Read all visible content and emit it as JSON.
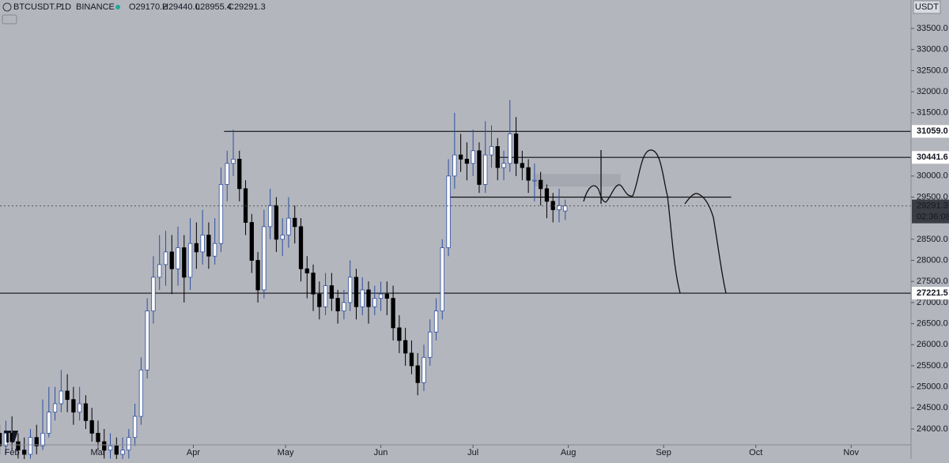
{
  "chart_data": {
    "type": "candlestick",
    "symbol": "BTCUSDT.P",
    "interval": "1D",
    "exchange": "BINANCE",
    "ohlc_labels": [
      "O29170.2",
      "H29440.0",
      "L28955.4",
      "C29291.3"
    ],
    "currency": "USDT",
    "x": [
      -4,
      -2,
      0,
      2,
      4,
      6,
      8,
      10,
      12,
      14,
      16,
      18,
      20,
      22,
      24,
      26,
      28,
      30,
      32,
      34,
      36,
      38,
      40,
      42,
      44,
      46,
      48,
      50,
      52,
      54,
      56,
      58,
      60,
      62,
      64,
      66,
      68,
      70,
      72,
      74,
      76,
      78,
      80,
      82,
      84,
      86,
      88,
      90,
      92,
      94,
      96,
      98,
      100,
      102,
      104,
      106,
      108,
      110,
      112,
      114,
      116,
      118,
      120,
      122,
      124,
      126,
      128,
      130,
      132,
      134,
      136,
      138,
      140,
      142,
      144,
      146,
      148,
      150,
      152,
      154,
      156,
      158,
      160,
      162,
      164,
      166,
      168,
      170,
      172,
      174,
      176,
      178,
      180
    ],
    "open": [
      23900,
      23600,
      23900,
      23700,
      23500,
      23400,
      23800,
      23600,
      23900,
      24400,
      24600,
      24900,
      24700,
      24400,
      24600,
      24200,
      23900,
      23700,
      23500,
      23600,
      23400,
      23500,
      23800,
      24300,
      25400,
      26800,
      27600,
      27900,
      28200,
      27800,
      28300,
      27600,
      28400,
      28200,
      28600,
      28100,
      28400,
      29800,
      30300,
      30400,
      29700,
      28900,
      28000,
      27300,
      28800,
      29300,
      28500,
      28600,
      29000,
      28800,
      27800,
      27700,
      27200,
      26900,
      27400,
      27100,
      26800,
      27000,
      27600,
      26900,
      27300,
      26900,
      27100,
      27200,
      27100,
      26400,
      26100,
      25800,
      25500,
      25100,
      25700,
      26300,
      26800,
      28300,
      30000,
      30500,
      30400,
      30300,
      30600,
      29800,
      30500,
      30700,
      30200,
      30300,
      31000,
      30300,
      30200,
      29900,
      29900,
      29700,
      29400,
      29200,
      29170.2
    ],
    "high": [
      24100,
      24200,
      24300,
      23900,
      23800,
      24000,
      24100,
      24700,
      25000,
      25000,
      25400,
      25300,
      25000,
      25000,
      24800,
      24500,
      24200,
      24000,
      23900,
      23800,
      23800,
      24000,
      24600,
      25700,
      27100,
      28100,
      28600,
      28700,
      28600,
      28800,
      28600,
      29000,
      28900,
      29200,
      28900,
      29000,
      30200,
      30600,
      31100,
      30600,
      29900,
      29100,
      28200,
      29200,
      29700,
      29500,
      29000,
      29500,
      29300,
      29000,
      28100,
      27900,
      27500,
      27700,
      27700,
      27300,
      27300,
      28000,
      27800,
      27600,
      27500,
      27400,
      27500,
      27500,
      27400,
      26700,
      26400,
      26100,
      25800,
      26000,
      26600,
      27100,
      28500,
      30400,
      31500,
      31000,
      30800,
      31100,
      30800,
      31300,
      31200,
      30900,
      30600,
      31800,
      31400,
      30600,
      30400,
      30300,
      30100,
      29800,
      29600,
      29700,
      29440
    ],
    "low": [
      23400,
      23400,
      23500,
      23300,
      23200,
      23300,
      23400,
      23500,
      23800,
      24200,
      24400,
      24400,
      24100,
      24200,
      24000,
      23700,
      23500,
      23300,
      23300,
      23200,
      23200,
      23300,
      23600,
      24100,
      25200,
      26500,
      27300,
      27400,
      27200,
      27400,
      27000,
      27300,
      27800,
      27900,
      27800,
      27900,
      28200,
      29400,
      30000,
      29400,
      28600,
      27700,
      27000,
      27100,
      28500,
      28200,
      28100,
      28300,
      28400,
      27500,
      27100,
      26800,
      26600,
      26700,
      26800,
      26500,
      26600,
      26800,
      26600,
      26700,
      26500,
      26700,
      26800,
      26700,
      26100,
      25800,
      25500,
      25300,
      24800,
      24900,
      25500,
      26100,
      26600,
      28100,
      29700,
      30100,
      29900,
      30000,
      29600,
      29600,
      30200,
      29900,
      29900,
      30100,
      30000,
      29900,
      29600,
      29400,
      29300,
      29000,
      28900,
      28900,
      28955.4
    ],
    "close": [
      23600,
      23900,
      23700,
      23500,
      23400,
      23800,
      23600,
      23900,
      24400,
      24600,
      24900,
      24700,
      24400,
      24600,
      24200,
      23900,
      23700,
      23500,
      23600,
      23400,
      23500,
      23800,
      24300,
      25400,
      26800,
      27600,
      27900,
      28200,
      27800,
      28300,
      27600,
      28400,
      28200,
      28600,
      28100,
      28400,
      29800,
      30300,
      30400,
      29700,
      28900,
      28000,
      27300,
      28800,
      29300,
      28500,
      28600,
      29000,
      28800,
      27800,
      27700,
      27200,
      26900,
      27400,
      27100,
      26800,
      27000,
      27600,
      26900,
      27300,
      26900,
      27100,
      27200,
      27100,
      26400,
      26100,
      25800,
      25500,
      25100,
      25700,
      26300,
      26800,
      28300,
      30000,
      30500,
      30400,
      30300,
      30600,
      29800,
      30500,
      30700,
      30200,
      30300,
      31000,
      30300,
      30200,
      29900,
      29900,
      29700,
      29400,
      29200,
      29300,
      29291.3
    ],
    "up_color": "#ffffff",
    "up_border": "#2d4f9e",
    "down_color": "#000000",
    "xlim": [
      -3.9,
      292.5
    ],
    "xticks": [
      {
        "value": 0,
        "label": "Feb"
      },
      {
        "value": 28,
        "label": "Mar"
      },
      {
        "value": 59,
        "label": "Apr"
      },
      {
        "value": 89,
        "label": "May"
      },
      {
        "value": 120,
        "label": "Jun"
      },
      {
        "value": 150,
        "label": "Jul"
      },
      {
        "value": 181,
        "label": "Aug"
      },
      {
        "value": 212,
        "label": "Sep"
      },
      {
        "value": 242,
        "label": "Oct"
      },
      {
        "value": 273,
        "label": "Nov"
      }
    ],
    "ylim": [
      23625,
      34175
    ],
    "yticks": [
      {
        "value": 24000,
        "label": "24000.0"
      },
      {
        "value": 24500,
        "label": "24500.0"
      },
      {
        "value": 25000,
        "label": "25000.0"
      },
      {
        "value": 25500,
        "label": "25500.0"
      },
      {
        "value": 26000,
        "label": "26000.0"
      },
      {
        "value": 26500,
        "label": "26500.0"
      },
      {
        "value": 27000,
        "label": "27000.0"
      },
      {
        "value": 27500,
        "label": "27500.0"
      },
      {
        "value": 28000,
        "label": "28000.0"
      },
      {
        "value": 28500,
        "label": "28500.0"
      },
      {
        "value": 29500,
        "label": "29500.0"
      },
      {
        "value": 30000,
        "label": "30000.0"
      },
      {
        "value": 31500,
        "label": "31500.0"
      },
      {
        "value": 32000,
        "label": "32000.0"
      },
      {
        "value": 32500,
        "label": "32500.0"
      },
      {
        "value": 33000,
        "label": "33000.0"
      },
      {
        "value": 33500,
        "label": "33500.0"
      }
    ],
    "grid": false,
    "levels": [
      {
        "value": 31059.0,
        "label": "31059.0",
        "start": 69
      },
      {
        "value": 30441.6,
        "label": "30441.6",
        "start": 158
      },
      {
        "value": 27221.5,
        "label": "27221.5",
        "start": -3.9
      }
    ],
    "support_line": {
      "value": 29500,
      "start": 142,
      "end": 234
    },
    "zone": {
      "start": 170,
      "end": 198,
      "low": 29750,
      "high": 30050
    },
    "last_price": {
      "value": 29291.3,
      "label": "29291.3",
      "countdown": "02:36:08"
    }
  }
}
